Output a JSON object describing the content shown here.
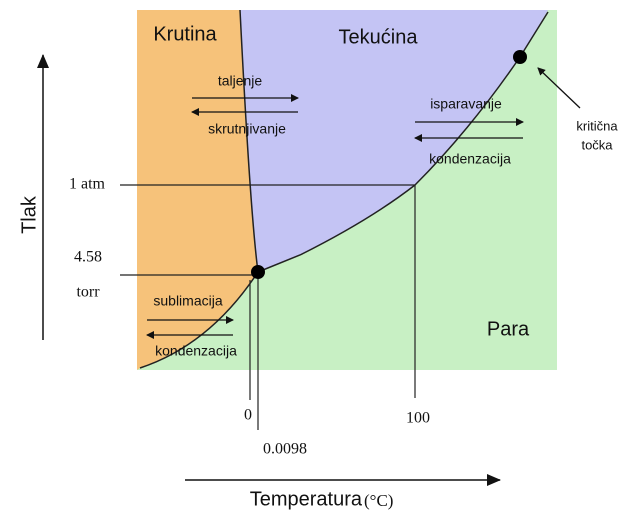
{
  "regions": {
    "solid": "Krutina",
    "liquid": "Tekućina",
    "gas": "Para"
  },
  "transitions": {
    "melting": "taljenje",
    "freezing": "skrutnjivanje",
    "vaporization": "isparavanje",
    "condensation": "kondenzacija",
    "sublimation": "sublimacija",
    "deposition": "kondenzacija"
  },
  "critical_point": {
    "line1": "kritična",
    "line2": "točka"
  },
  "axes": {
    "y_label": "Tlak",
    "x_label": "Temperatura",
    "x_unit": "(°C)",
    "pressure_labels": {
      "atm": "1 atm",
      "triple_value": "4.58",
      "triple_unit": "torr"
    },
    "temperature_labels": {
      "zero": "0",
      "boiling": "100",
      "triple": "0.0098"
    }
  }
}
